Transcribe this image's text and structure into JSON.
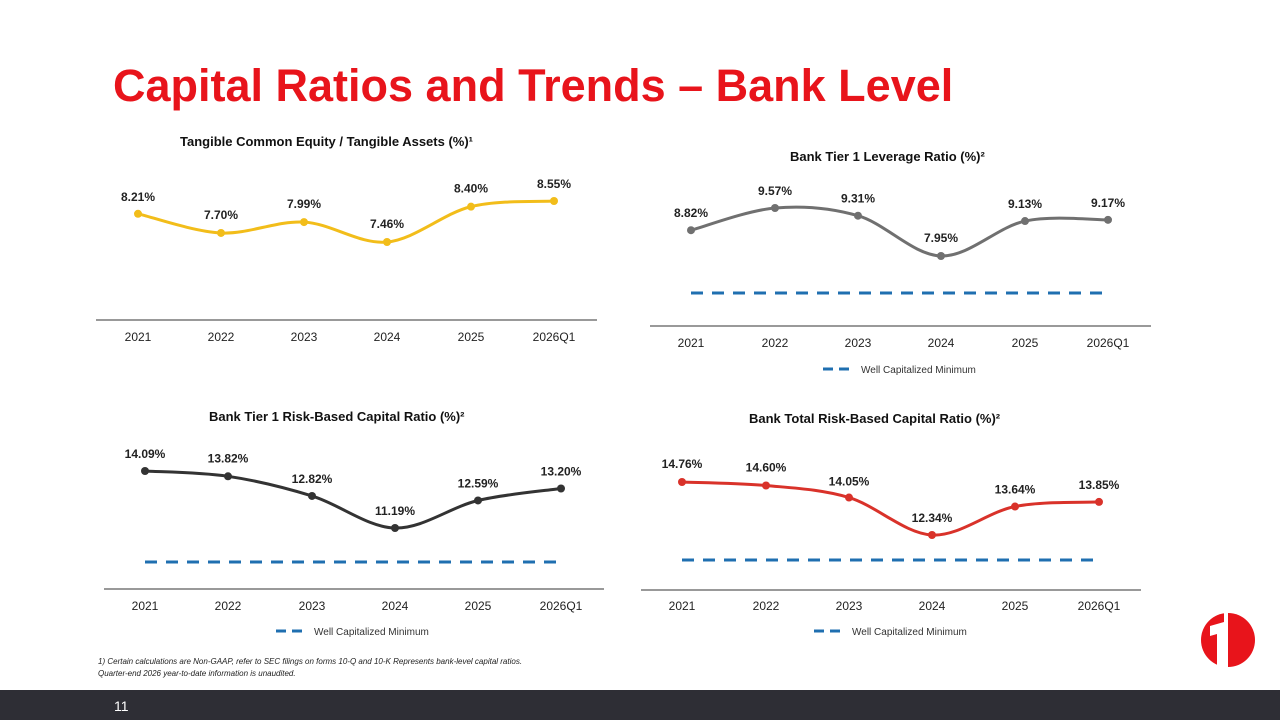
{
  "title": "Capital Ratios and Trends – Bank Level",
  "footnote": {
    "line1": "1) Certain calculations are Non-GAAP, refer to SEC filings on forms 10-Q and 10-K Represents bank-level capital ratios.",
    "line2": "Quarter-end 2026 year-to-date information is unaudited."
  },
  "page_number": "11",
  "colors": {
    "title_red": "#e8141b",
    "footer": "#2e2e35",
    "threshold_blue": "#1f6fb0"
  },
  "chart_data": [
    {
      "id": "tce",
      "type": "line",
      "title": "Tangible Common Equity / Tangible Assets (%)¹",
      "categories": [
        "2021",
        "2022",
        "2023",
        "2024",
        "2025",
        "2026Q1"
      ],
      "series": [
        {
          "values": [
            8.21,
            7.7,
            7.99,
            7.46,
            8.4,
            8.55
          ],
          "labels": [
            "8.21%",
            "7.70%",
            "7.99%",
            "7.46%",
            "8.40%",
            "8.55%"
          ],
          "color": "#f2bd1a"
        }
      ],
      "threshold": null,
      "legend": null
    },
    {
      "id": "leverage",
      "type": "line",
      "title": "Bank Tier 1 Leverage Ratio (%)²",
      "categories": [
        "2021",
        "2022",
        "2023",
        "2024",
        "2025",
        "2026Q1"
      ],
      "series": [
        {
          "values": [
            8.82,
            9.57,
            9.31,
            7.95,
            9.13,
            9.17
          ],
          "labels": [
            "8.82%",
            "9.57%",
            "9.31%",
            "7.95%",
            "9.13%",
            "9.17%"
          ],
          "color": "#707070"
        }
      ],
      "threshold": 5.0,
      "legend": "Well Capitalized Minimum"
    },
    {
      "id": "tier1rb",
      "type": "line",
      "title": "Bank Tier 1 Risk-Based Capital Ratio (%)²",
      "categories": [
        "2021",
        "2022",
        "2023",
        "2024",
        "2025",
        "2026Q1"
      ],
      "series": [
        {
          "values": [
            14.09,
            13.82,
            12.82,
            11.19,
            12.59,
            13.2
          ],
          "labels": [
            "14.09%",
            "13.82%",
            "12.82%",
            "11.19%",
            "12.59%",
            "13.20%"
          ],
          "color": "#333333"
        }
      ],
      "threshold": 8.0,
      "legend": "Well Capitalized Minimum"
    },
    {
      "id": "totalrb",
      "type": "line",
      "title": "Bank Total Risk-Based Capital Ratio (%)²",
      "categories": [
        "2021",
        "2022",
        "2023",
        "2024",
        "2025",
        "2026Q1"
      ],
      "series": [
        {
          "values": [
            14.76,
            14.6,
            14.05,
            12.34,
            13.64,
            13.85
          ],
          "labels": [
            "14.76%",
            "14.60%",
            "14.05%",
            "12.34%",
            "13.64%",
            "13.85%"
          ],
          "color": "#d9322a"
        }
      ],
      "threshold": 10.0,
      "legend": "Well Capitalized Minimum"
    }
  ]
}
